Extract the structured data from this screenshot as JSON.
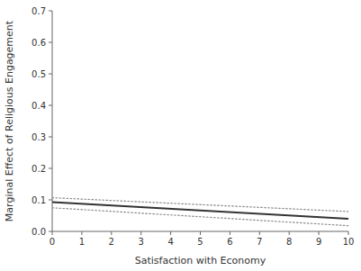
{
  "chart_data": {
    "type": "line",
    "x": [
      0,
      10
    ],
    "series": [
      {
        "color": "#888888",
        "line_style": "dotted",
        "values": [
          0.107,
          0.063
        ]
      },
      {
        "color": "#888888",
        "line_style": "dotted",
        "values": [
          0.075,
          0.018
        ]
      },
      {
        "color": "#333333",
        "line_style": "solid",
        "values": [
          0.093,
          0.04
        ]
      }
    ],
    "xlabel": "Satisfaction with Economy",
    "ylabel": "Marginal Effect of Religious Engagement",
    "xlim": [
      0,
      10
    ],
    "ylim": [
      0.0,
      0.7
    ],
    "xticks": [
      0,
      1,
      2,
      3,
      4,
      5,
      6,
      7,
      8,
      9,
      10
    ],
    "yticks": [
      {
        "value": 0.0,
        "label": "0.0"
      },
      0.1,
      0.2,
      0.3,
      0.4,
      0.5,
      0.6,
      0.7
    ],
    "grid": false
  }
}
